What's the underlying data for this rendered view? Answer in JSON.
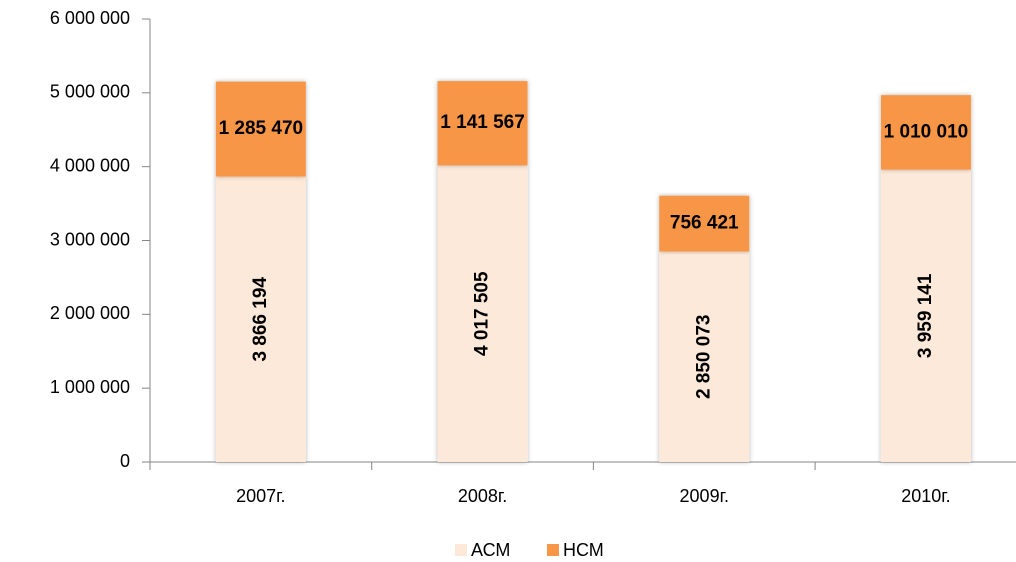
{
  "chart_data": {
    "type": "stacked_bar",
    "categories": [
      "2007г.",
      "2008г.",
      "2009г.",
      "2010г."
    ],
    "series": [
      {
        "name": "АСМ",
        "color": "#fde9d9",
        "values": [
          3866194,
          4017505,
          2850073,
          3959141
        ],
        "value_labels": [
          "3 866 194",
          "4 017 505",
          "2 850 073",
          "3 959 141"
        ]
      },
      {
        "name": "НСМ",
        "color": "#f79646",
        "values": [
          1285470,
          1141567,
          756421,
          1010010
        ],
        "value_labels": [
          "1 285 470",
          "1 141 567",
          "756 421",
          "1 010 010"
        ]
      }
    ],
    "ylim": [
      0,
      6000000
    ],
    "yticks": [
      0,
      {
        "value": 1000000,
        "label": "1 000 000"
      },
      {
        "value": 2000000,
        "label": "2 000 000"
      },
      {
        "value": 3000000,
        "label": "3 000 000"
      },
      {
        "value": 4000000,
        "label": "4 000 000"
      },
      {
        "value": 5000000,
        "label": "5 000 000"
      },
      {
        "value": 6000000,
        "label": "6 000 000"
      }
    ],
    "grid": false,
    "legend": "bottom"
  }
}
